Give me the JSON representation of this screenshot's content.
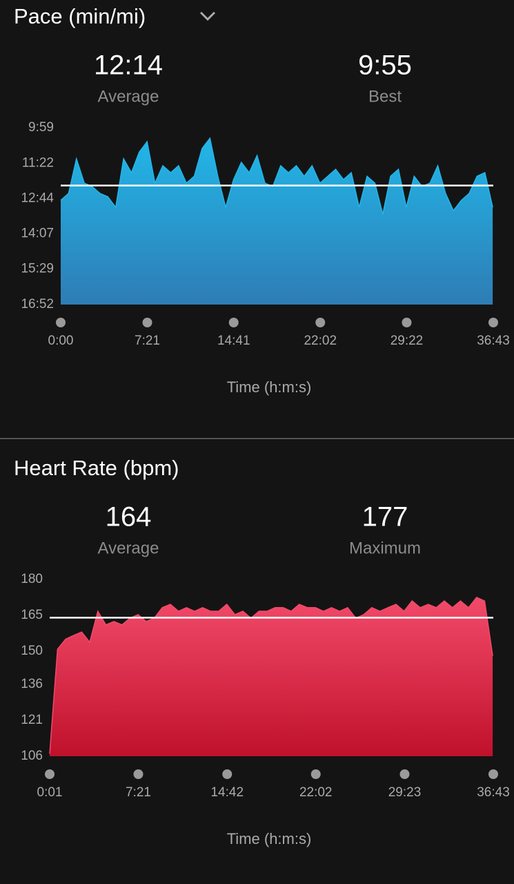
{
  "chart_data": [
    {
      "type": "area",
      "title": "Pace (min/mi)",
      "stats": [
        {
          "value": 12.233,
          "value_label": "12:14",
          "label": "Average"
        },
        {
          "value": "9:55",
          "label": "Best"
        }
      ],
      "x": [
        0,
        40,
        80,
        120,
        160,
        200,
        240,
        280,
        320,
        360,
        400,
        440,
        480,
        520,
        560,
        600,
        640,
        680,
        720,
        760,
        800,
        840,
        880,
        920,
        960,
        1000,
        1040,
        1080,
        1120,
        1160,
        1200,
        1240,
        1280,
        1320,
        1360,
        1400,
        1440,
        1480,
        1520,
        1560,
        1600,
        1640,
        1680,
        1720,
        1760,
        1800,
        1840,
        1880,
        1920,
        1960,
        2000,
        2040,
        2080,
        2120,
        2160,
        2200
      ],
      "values": [
        12.81,
        12.54,
        11.19,
        12.14,
        12.27,
        12.54,
        12.67,
        13.08,
        11.19,
        11.73,
        10.93,
        10.52,
        12.14,
        11.46,
        11.73,
        11.46,
        12.14,
        11.87,
        10.79,
        10.39,
        11.87,
        13.08,
        12.0,
        11.33,
        11.73,
        11.06,
        12.14,
        12.27,
        11.46,
        11.73,
        11.46,
        11.87,
        11.46,
        12.14,
        11.87,
        11.6,
        12.0,
        11.73,
        13.08,
        11.87,
        12.14,
        13.35,
        11.87,
        11.6,
        13.08,
        11.87,
        12.27,
        12.14,
        11.46,
        12.54,
        13.21,
        12.81,
        12.54,
        11.87,
        11.73,
        13.08
      ],
      "gradient": [
        "#22b6e8",
        "#2e7db5"
      ],
      "xlim": [
        0,
        2203
      ],
      "xticks": [
        {
          "value": 0,
          "label": "0:00"
        },
        {
          "value": 441,
          "label": "7:21"
        },
        {
          "value": 881,
          "label": "14:41"
        },
        {
          "value": 1322,
          "label": "22:02"
        },
        {
          "value": 1762,
          "label": "29:22"
        },
        {
          "value": 2203,
          "label": "36:43"
        }
      ],
      "ylim": [
        16.867,
        9.983
      ],
      "yticks": [
        {
          "value": 9.983,
          "label": "9:59"
        },
        {
          "value": 11.367,
          "label": "11:22"
        },
        {
          "value": 12.733,
          "label": "12:44"
        },
        {
          "value": 14.117,
          "label": "14:07"
        },
        {
          "value": 15.483,
          "label": "15:29"
        },
        {
          "value": 16.867,
          "label": "16:52"
        }
      ],
      "x_label": "Time (h:m:s)"
    },
    {
      "type": "area",
      "title": "Heart Rate (bpm)",
      "stats": [
        {
          "value": 164,
          "label": "Average"
        },
        {
          "value": 177,
          "label": "Maximum"
        }
      ],
      "x": [
        1,
        40,
        80,
        120,
        160,
        200,
        240,
        280,
        320,
        360,
        400,
        440,
        480,
        520,
        560,
        600,
        640,
        680,
        720,
        760,
        800,
        840,
        880,
        920,
        960,
        1000,
        1040,
        1080,
        1120,
        1160,
        1200,
        1240,
        1280,
        1320,
        1360,
        1400,
        1440,
        1480,
        1520,
        1560,
        1600,
        1640,
        1680,
        1720,
        1760,
        1800,
        1840,
        1880,
        1920,
        1960,
        2000,
        2040,
        2080,
        2120,
        2160,
        2200
      ],
      "values": [
        107,
        150.8,
        155,
        156.6,
        158,
        153.7,
        166.7,
        161,
        162.4,
        161,
        163.8,
        165.3,
        162.4,
        163.8,
        168.2,
        169.6,
        166.7,
        168.2,
        166.7,
        168.2,
        166.7,
        166.7,
        169.6,
        165.3,
        166.7,
        163.8,
        166.7,
        166.7,
        168.2,
        168.2,
        166.7,
        169.6,
        168.2,
        168.2,
        166.7,
        168.2,
        166.7,
        168.2,
        163.8,
        165.3,
        168.2,
        166.7,
        168.2,
        169.6,
        166.7,
        171,
        168.2,
        169.6,
        168.2,
        171,
        168.2,
        171,
        168.2,
        172.5,
        171,
        148
      ],
      "gradient": [
        "#f24a6a",
        "#c0112b"
      ],
      "xlim": [
        1,
        2203
      ],
      "xticks": [
        {
          "value": 1,
          "label": "0:01"
        },
        {
          "value": 441,
          "label": "7:21"
        },
        {
          "value": 882,
          "label": "14:42"
        },
        {
          "value": 1322,
          "label": "22:02"
        },
        {
          "value": 1763,
          "label": "29:23"
        },
        {
          "value": 2203,
          "label": "36:43"
        }
      ],
      "ylim": [
        106,
        180
      ],
      "yticks": [
        180,
        165,
        150,
        136,
        121,
        106
      ],
      "x_label": "Time (h:m:s)"
    }
  ]
}
